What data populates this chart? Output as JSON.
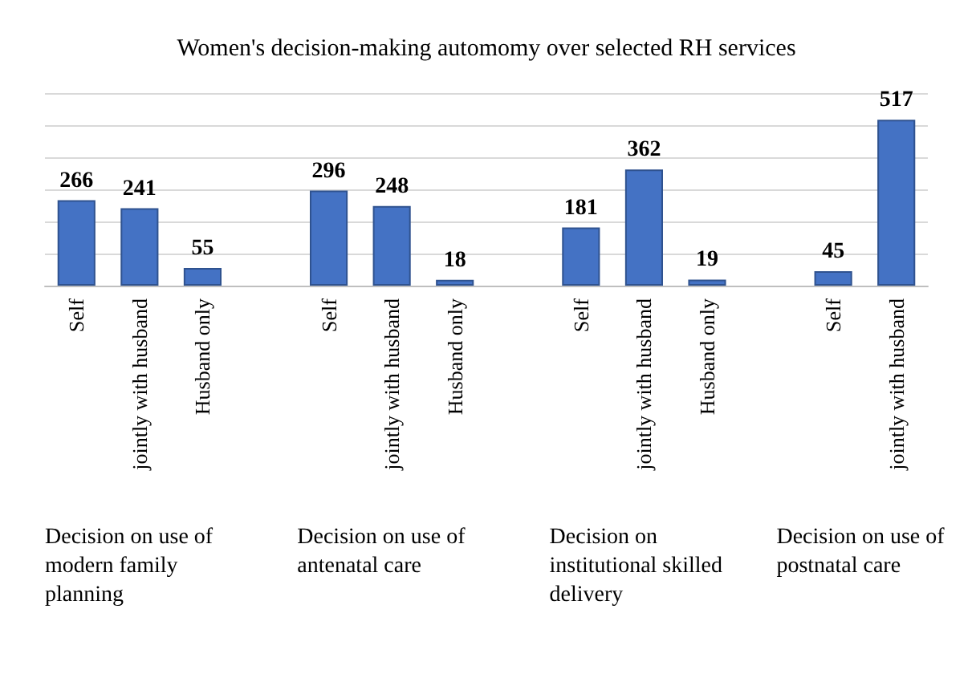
{
  "chart_data": {
    "type": "bar",
    "title": "Women's decision-making automomy over selected RH services",
    "categories": [
      "Self",
      "jointly with husband",
      "Husband only",
      null,
      "Self",
      "jointly with husband",
      "Husband only",
      null,
      "Self",
      "jointly with husband",
      "Husband only",
      null,
      "Self",
      "jointly with husband"
    ],
    "values": [
      266,
      241,
      55,
      null,
      296,
      248,
      18,
      null,
      181,
      362,
      19,
      null,
      45,
      517
    ],
    "color": "#4472c4",
    "data_labels": true,
    "grid": true,
    "annotations": [
      "Decision on use of modern family planning",
      "Decision on use of antenatal care",
      "Decision on institutional skilled delivery",
      "Decision on use of postnatal care"
    ]
  }
}
